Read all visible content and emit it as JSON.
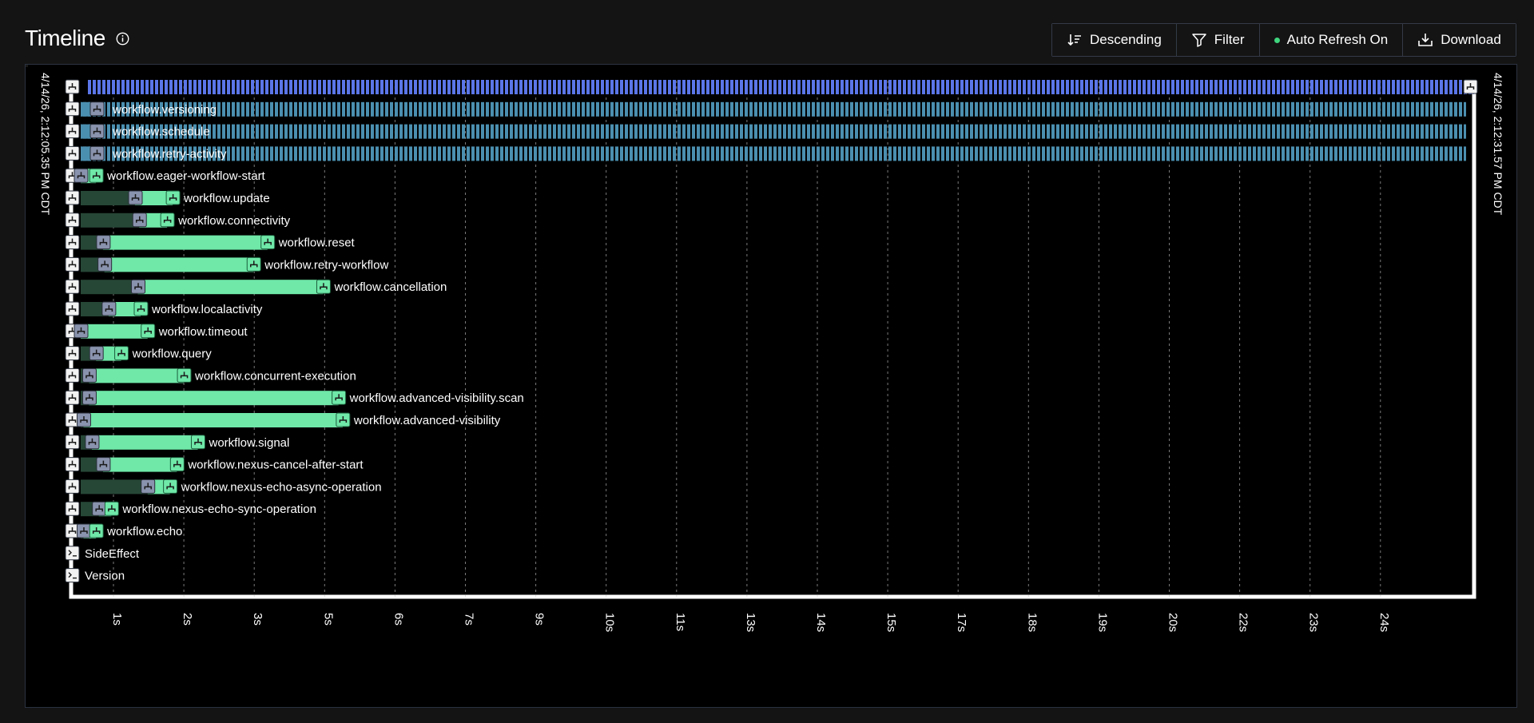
{
  "header": {
    "title": "Timeline",
    "info_icon": "info-circle-icon",
    "buttons": [
      {
        "label": "Descending",
        "icon": "sort-descending-icon"
      },
      {
        "label": "Filter",
        "icon": "filter-icon"
      },
      {
        "label": "Auto Refresh On",
        "icon": "status-dot-green"
      },
      {
        "label": "Download",
        "icon": "download-icon"
      }
    ]
  },
  "timeline": {
    "start_label": "4/14/26, 2:12:05.35 PM CDT",
    "end_label": "4/14/26, 2:12:31.57 PM CDT",
    "ticks": [
      "1s",
      "2s",
      "3s",
      "5s",
      "6s",
      "7s",
      "9s",
      "10s",
      "11s",
      "13s",
      "14s",
      "15s",
      "17s",
      "18s",
      "19s",
      "20s",
      "22s",
      "23s",
      "24s"
    ],
    "colors": {
      "running": "#4b8fb0",
      "running_top": "#5b76e8",
      "completed": "#6fe8a8",
      "scheduled": "#264736",
      "axis": "#ffffff"
    },
    "rows": [
      {
        "label": "",
        "status": "running-workflow",
        "sched": 0.0,
        "start": 0.0,
        "end": 1.0
      },
      {
        "label": "workflow.versioning",
        "status": "running",
        "sched": 0.0,
        "start": 0.0,
        "end": 1.0
      },
      {
        "label": "workflow.schedule",
        "status": "running",
        "sched": 0.0,
        "start": 0.0,
        "end": 1.0
      },
      {
        "label": "workflow.retry-activity",
        "status": "running",
        "sched": 0.0,
        "start": 0.0,
        "end": 1.0
      },
      {
        "label": "workflow.eager-workflow-start",
        "status": "completed",
        "sched": 0.0,
        "start": 0.0,
        "end": 0.011
      },
      {
        "label": "workflow.update",
        "status": "completed",
        "sched": 0.0,
        "start": 0.039,
        "end": 0.066
      },
      {
        "label": "workflow.connectivity",
        "status": "completed",
        "sched": 0.0,
        "start": 0.042,
        "end": 0.062
      },
      {
        "label": "workflow.reset",
        "status": "completed",
        "sched": 0.0,
        "start": 0.016,
        "end": 0.134
      },
      {
        "label": "workflow.retry-workflow",
        "status": "completed",
        "sched": 0.0,
        "start": 0.017,
        "end": 0.124
      },
      {
        "label": "workflow.cancellation",
        "status": "completed",
        "sched": 0.0,
        "start": 0.041,
        "end": 0.174
      },
      {
        "label": "workflow.localactivity",
        "status": "completed",
        "sched": 0.0,
        "start": 0.02,
        "end": 0.043
      },
      {
        "label": "workflow.timeout",
        "status": "completed",
        "sched": 0.0,
        "start": 0.0,
        "end": 0.048
      },
      {
        "label": "workflow.query",
        "status": "completed",
        "sched": 0.0,
        "start": 0.011,
        "end": 0.029
      },
      {
        "label": "workflow.concurrent-execution",
        "status": "completed",
        "sched": 0.0,
        "start": 0.006,
        "end": 0.074
      },
      {
        "label": "workflow.advanced-visibility.scan",
        "status": "completed",
        "sched": 0.0,
        "start": 0.006,
        "end": 0.185
      },
      {
        "label": "workflow.advanced-visibility",
        "status": "completed",
        "sched": 0.0,
        "start": 0.002,
        "end": 0.188
      },
      {
        "label": "workflow.signal",
        "status": "completed",
        "sched": 0.0,
        "start": 0.008,
        "end": 0.084
      },
      {
        "label": "workflow.nexus-cancel-after-start",
        "status": "completed",
        "sched": 0.0,
        "start": 0.016,
        "end": 0.069
      },
      {
        "label": "workflow.nexus-echo-async-operation",
        "status": "completed",
        "sched": 0.0,
        "start": 0.048,
        "end": 0.064
      },
      {
        "label": "workflow.nexus-echo-sync-operation",
        "status": "completed",
        "sched": 0.0,
        "start": 0.013,
        "end": 0.022
      },
      {
        "label": "workflow.echo",
        "status": "completed",
        "sched": 0.0,
        "start": 0.002,
        "end": 0.011
      },
      {
        "label": "SideEffect",
        "status": "marker",
        "sched": 0.0,
        "start": 0.0,
        "end": 0.0
      },
      {
        "label": "Version",
        "status": "marker",
        "sched": 0.0,
        "start": 0.0,
        "end": 0.0
      }
    ]
  }
}
